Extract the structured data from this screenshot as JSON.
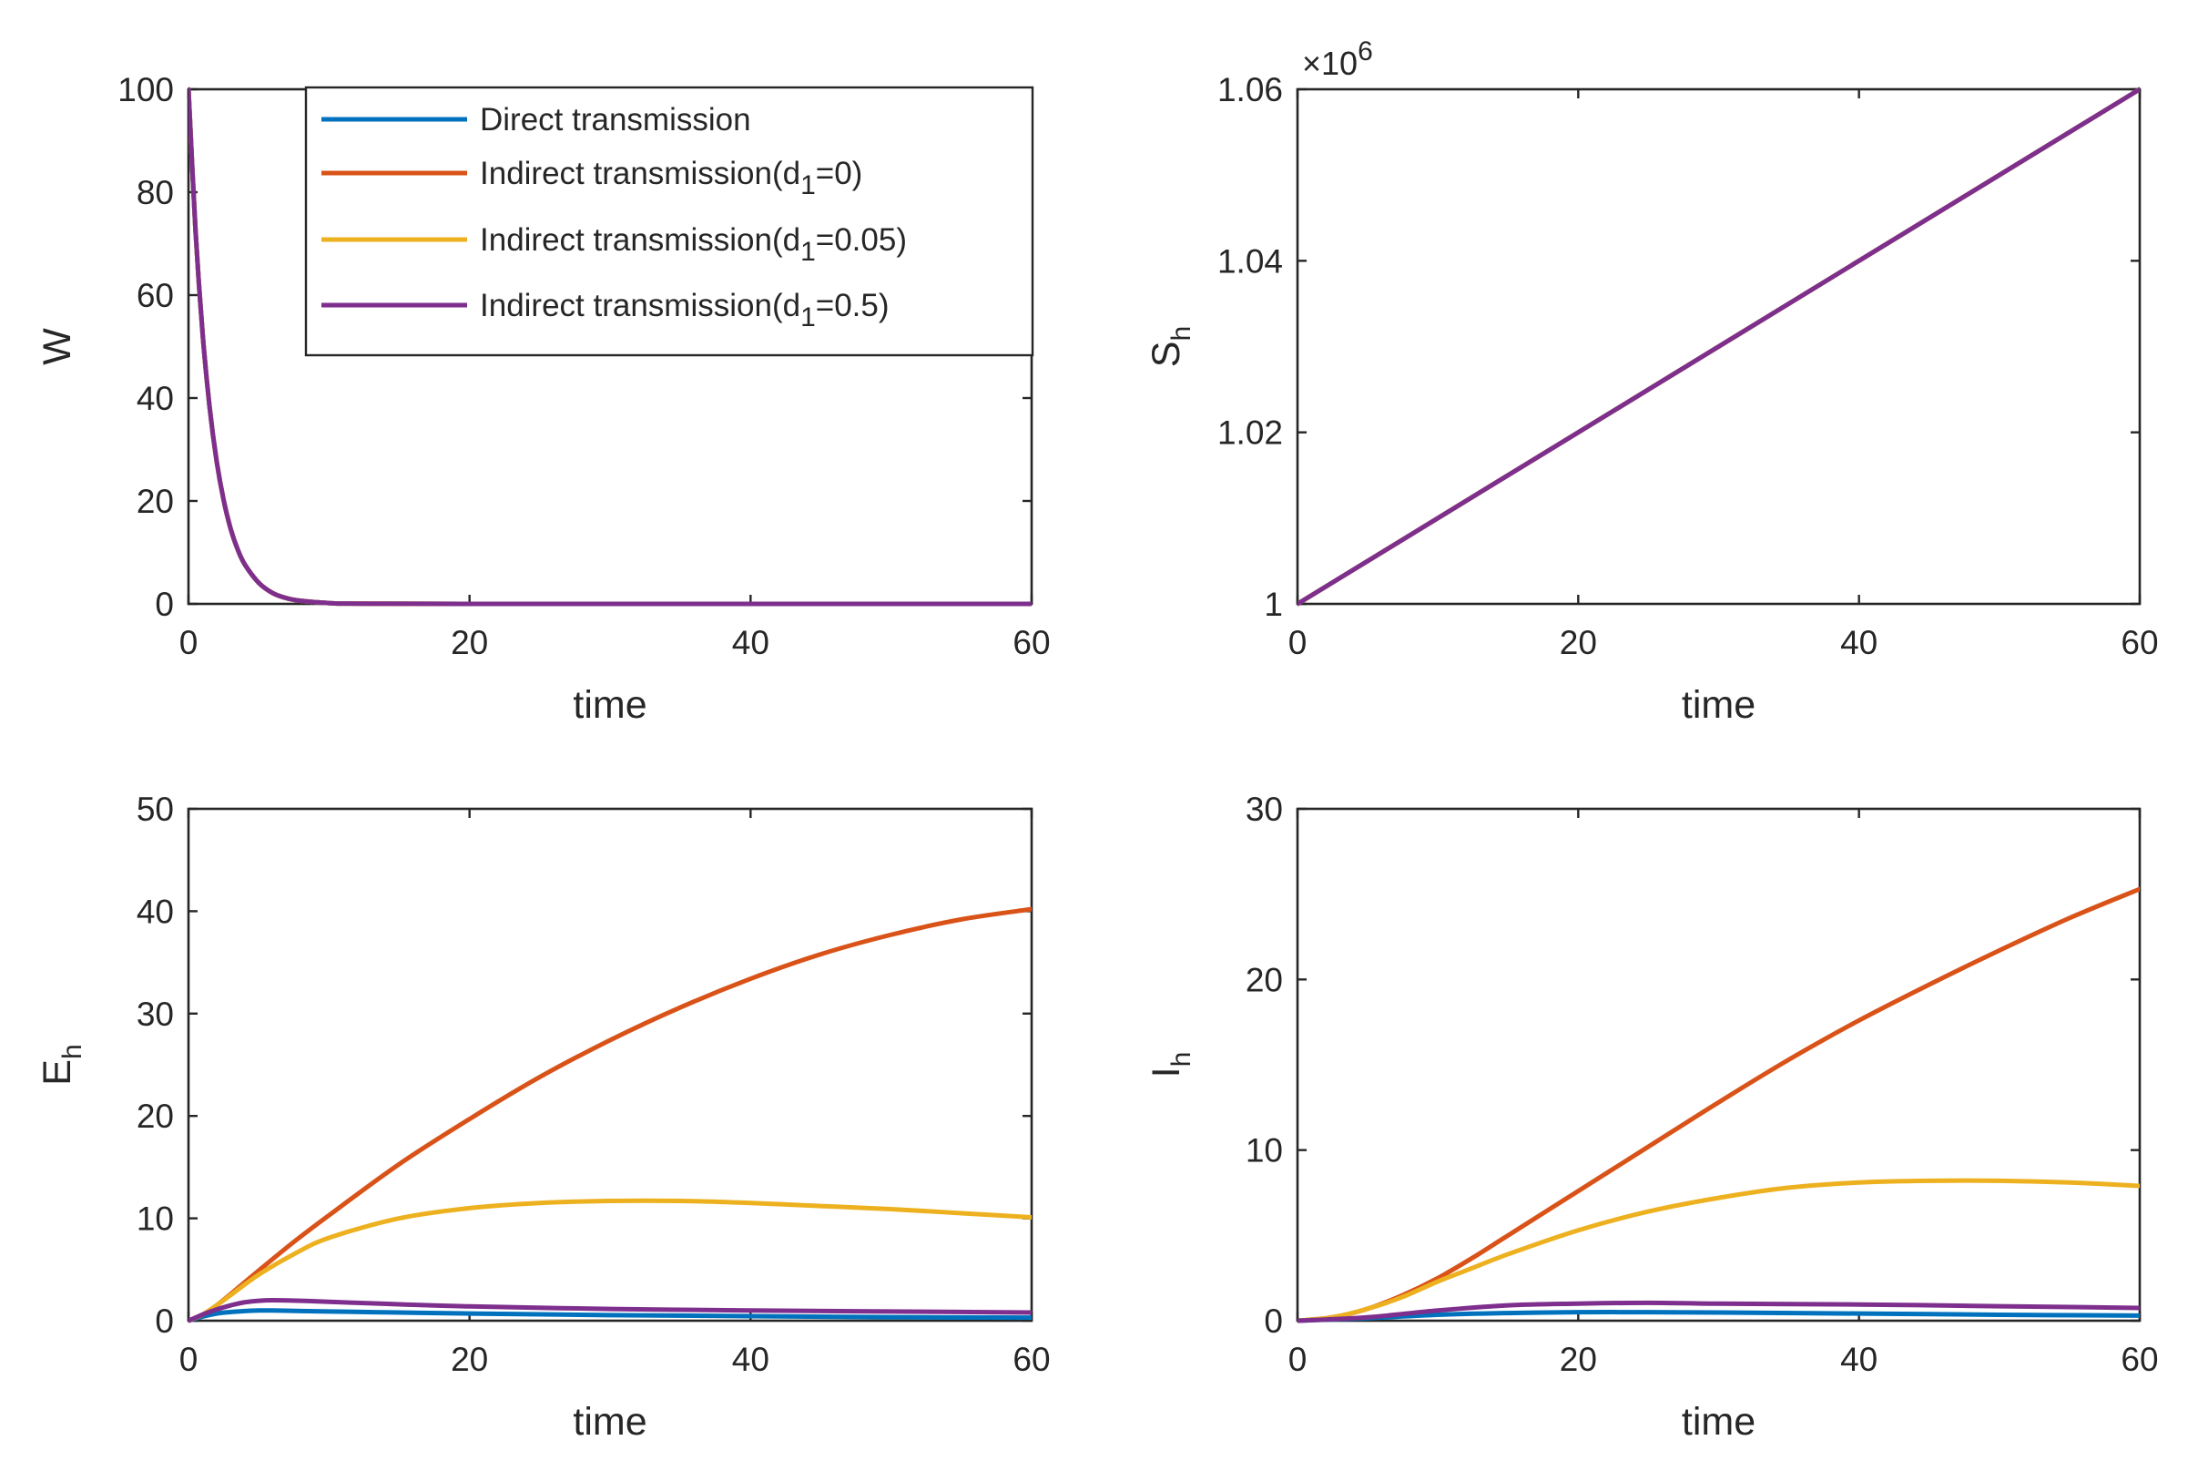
{
  "colors": {
    "direct": "#0072BD",
    "indirect_d0": "#D95319",
    "indirect_d005": "#EDB120",
    "indirect_d05": "#7E2F8E"
  },
  "legend": {
    "entries": [
      {
        "text": "Direct transmission",
        "sub": "",
        "tail": "",
        "color_key": "direct"
      },
      {
        "text": "Indirect transmission(d",
        "sub": "1",
        "tail": "=0)",
        "color_key": "indirect_d0"
      },
      {
        "text": "Indirect transmission(d",
        "sub": "1",
        "tail": "=0.05)",
        "color_key": "indirect_d005"
      },
      {
        "text": "Indirect transmission(d",
        "sub": "1",
        "tail": "=0.5)",
        "color_key": "indirect_d05"
      }
    ]
  },
  "chart_data": [
    {
      "id": "W",
      "type": "line",
      "title": "",
      "xlabel": "time",
      "ylabel": "W",
      "ylabel_sub": "",
      "xlim": [
        0,
        60
      ],
      "ylim": [
        0,
        100
      ],
      "xticks": [
        "0",
        "20",
        "40",
        "60"
      ],
      "yticks": [
        "0",
        "20",
        "40",
        "60",
        "80",
        "100"
      ],
      "exponent_label": "",
      "has_legend": true,
      "series": [
        {
          "name": "Direct transmission",
          "color_key": "direct",
          "x": [
            0,
            0.5,
            1,
            1.5,
            2,
            2.5,
            3,
            3.5,
            4,
            5,
            6,
            7,
            8,
            10,
            12,
            20,
            40,
            60
          ],
          "y": [
            100,
            72.6,
            52.7,
            38.3,
            27.8,
            20.2,
            14.6,
            10.6,
            7.7,
            4.1,
            2.1,
            1.1,
            0.6,
            0.15,
            0.05,
            0,
            0,
            0
          ]
        },
        {
          "name": "Indirect transmission(d1=0)",
          "color_key": "indirect_d0",
          "x": [
            0,
            0.5,
            1,
            1.5,
            2,
            2.5,
            3,
            3.5,
            4,
            5,
            6,
            7,
            8,
            10,
            12,
            20,
            40,
            60
          ],
          "y": [
            100,
            72.6,
            52.7,
            38.3,
            27.8,
            20.2,
            14.6,
            10.6,
            7.7,
            4.1,
            2.1,
            1.1,
            0.6,
            0.15,
            0.05,
            0,
            0,
            0
          ]
        },
        {
          "name": "Indirect transmission(d1=0.05)",
          "color_key": "indirect_d005",
          "x": [
            0,
            0.5,
            1,
            1.5,
            2,
            2.5,
            3,
            3.5,
            4,
            5,
            6,
            7,
            8,
            10,
            12,
            20,
            40,
            60
          ],
          "y": [
            100,
            72.6,
            52.7,
            38.3,
            27.8,
            20.2,
            14.6,
            10.6,
            7.7,
            4.1,
            2.1,
            1.1,
            0.6,
            0.15,
            0.05,
            0,
            0,
            0
          ]
        },
        {
          "name": "Indirect transmission(d1=0.5)",
          "color_key": "indirect_d05",
          "x": [
            0,
            0.5,
            1,
            1.5,
            2,
            2.5,
            3,
            3.5,
            4,
            5,
            6,
            7,
            8,
            10,
            12,
            20,
            40,
            60
          ],
          "y": [
            100,
            72.6,
            52.7,
            38.3,
            27.8,
            20.2,
            14.6,
            10.6,
            7.7,
            4.1,
            2.1,
            1.1,
            0.6,
            0.15,
            0.05,
            0,
            0,
            0
          ]
        }
      ]
    },
    {
      "id": "Sh",
      "type": "line",
      "title": "",
      "xlabel": "time",
      "ylabel": "S",
      "ylabel_sub": "h",
      "xlim": [
        0,
        60
      ],
      "ylim": [
        1,
        1.06
      ],
      "xticks": [
        "0",
        "20",
        "40",
        "60"
      ],
      "yticks": [
        "1",
        "1.02",
        "1.04",
        "1.06"
      ],
      "exponent_label": "×10",
      "exponent_power": "6",
      "has_legend": false,
      "series": [
        {
          "name": "Direct transmission",
          "color_key": "direct",
          "x": [
            0,
            60
          ],
          "y": [
            1.0,
            1.06
          ]
        },
        {
          "name": "Indirect transmission(d1=0)",
          "color_key": "indirect_d0",
          "x": [
            0,
            60
          ],
          "y": [
            1.0,
            1.06
          ]
        },
        {
          "name": "Indirect transmission(d1=0.05)",
          "color_key": "indirect_d005",
          "x": [
            0,
            60
          ],
          "y": [
            1.0,
            1.06
          ]
        },
        {
          "name": "Indirect transmission(d1=0.5)",
          "color_key": "indirect_d05",
          "x": [
            0,
            60
          ],
          "y": [
            1.0,
            1.06
          ]
        }
      ]
    },
    {
      "id": "Eh",
      "type": "line",
      "title": "",
      "xlabel": "time",
      "ylabel": "E",
      "ylabel_sub": "h",
      "xlim": [
        0,
        60
      ],
      "ylim": [
        0,
        50
      ],
      "xticks": [
        "0",
        "20",
        "40",
        "60"
      ],
      "yticks": [
        "0",
        "10",
        "20",
        "30",
        "40",
        "50"
      ],
      "exponent_label": "",
      "has_legend": false,
      "series": [
        {
          "name": "Direct transmission",
          "color_key": "direct",
          "x": [
            0,
            1,
            2,
            3,
            4,
            5,
            6,
            8,
            10,
            15,
            20,
            30,
            40,
            50,
            60
          ],
          "y": [
            0,
            0.4,
            0.7,
            0.85,
            0.95,
            1.0,
            1.0,
            0.95,
            0.9,
            0.8,
            0.7,
            0.55,
            0.45,
            0.35,
            0.3
          ]
        },
        {
          "name": "Indirect transmission(d1=0)",
          "color_key": "indirect_d0",
          "x": [
            0,
            1,
            2,
            3,
            5,
            7.5,
            10,
            15,
            20,
            25,
            30,
            35,
            40,
            45,
            50,
            55,
            60
          ],
          "y": [
            0,
            0.6,
            1.5,
            2.6,
            4.9,
            7.7,
            10.3,
            15.3,
            19.7,
            23.8,
            27.4,
            30.6,
            33.4,
            35.8,
            37.7,
            39.2,
            40.2
          ]
        },
        {
          "name": "Indirect transmission(d1=0.05)",
          "color_key": "indirect_d005",
          "x": [
            0,
            1,
            2,
            3,
            5,
            7.5,
            10,
            15,
            20,
            25,
            30,
            35,
            40,
            45,
            50,
            55,
            60
          ],
          "y": [
            0,
            0.6,
            1.5,
            2.5,
            4.5,
            6.5,
            8.1,
            10.0,
            11.0,
            11.5,
            11.7,
            11.7,
            11.5,
            11.2,
            10.9,
            10.5,
            10.1
          ]
        },
        {
          "name": "Indirect transmission(d1=0.5)",
          "color_key": "indirect_d05",
          "x": [
            0,
            1,
            2,
            3,
            4,
            5,
            6,
            8,
            10,
            15,
            20,
            30,
            40,
            50,
            60
          ],
          "y": [
            0,
            0.6,
            1.1,
            1.5,
            1.8,
            1.95,
            2.0,
            1.95,
            1.85,
            1.6,
            1.4,
            1.15,
            1.0,
            0.9,
            0.8
          ]
        }
      ]
    },
    {
      "id": "Ih",
      "type": "line",
      "title": "",
      "xlabel": "time",
      "ylabel": "I",
      "ylabel_sub": "h",
      "xlim": [
        0,
        60
      ],
      "ylim": [
        0,
        30
      ],
      "xticks": [
        "0",
        "20",
        "40",
        "60"
      ],
      "yticks": [
        "0",
        "10",
        "20",
        "30"
      ],
      "exponent_label": "",
      "has_legend": false,
      "series": [
        {
          "name": "Direct transmission",
          "color_key": "direct",
          "x": [
            0,
            5,
            10,
            15,
            20,
            25,
            30,
            40,
            50,
            60
          ],
          "y": [
            0,
            0.15,
            0.35,
            0.45,
            0.5,
            0.5,
            0.48,
            0.42,
            0.35,
            0.3
          ]
        },
        {
          "name": "Indirect transmission(d1=0)",
          "color_key": "indirect_d0",
          "x": [
            0,
            2.5,
            5,
            7.5,
            10,
            12.5,
            15,
            20,
            25,
            30,
            35,
            40,
            45,
            50,
            55,
            60
          ],
          "y": [
            0,
            0.2,
            0.7,
            1.5,
            2.5,
            3.7,
            5.0,
            7.6,
            10.2,
            12.8,
            15.3,
            17.6,
            19.7,
            21.7,
            23.6,
            25.3
          ]
        },
        {
          "name": "Indirect transmission(d1=0.05)",
          "color_key": "indirect_d005",
          "x": [
            0,
            2.5,
            5,
            7.5,
            10,
            12.5,
            15,
            20,
            25,
            30,
            35,
            40,
            45,
            50,
            55,
            60
          ],
          "y": [
            0,
            0.2,
            0.7,
            1.4,
            2.3,
            3.1,
            3.9,
            5.3,
            6.4,
            7.2,
            7.8,
            8.1,
            8.2,
            8.2,
            8.1,
            7.9
          ]
        },
        {
          "name": "Indirect transmission(d1=0.5)",
          "color_key": "indirect_d05",
          "x": [
            0,
            5,
            10,
            15,
            20,
            25,
            30,
            40,
            50,
            60
          ],
          "y": [
            0,
            0.2,
            0.6,
            0.9,
            1.0,
            1.05,
            1.0,
            0.95,
            0.85,
            0.75
          ]
        }
      ]
    }
  ]
}
